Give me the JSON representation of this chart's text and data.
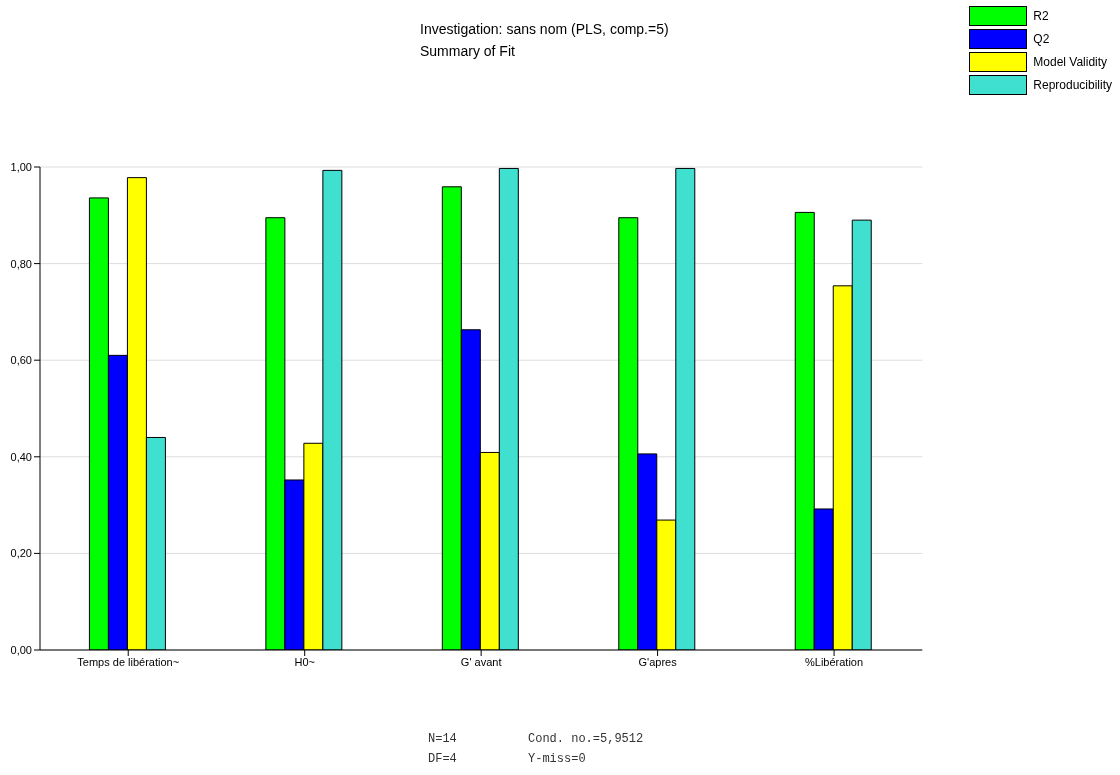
{
  "chart_data": {
    "type": "bar",
    "title": "Investigation: sans nom (PLS, comp.=5)",
    "subtitle": "Summary of Fit",
    "categories": [
      "Temps de libération~",
      "H0~",
      "G' avant",
      "G'apres",
      "%Libération"
    ],
    "series": [
      {
        "name": "R2",
        "color": "#00ff00",
        "values": [
          0.936,
          0.895,
          0.959,
          0.895,
          0.906
        ]
      },
      {
        "name": "Q2",
        "color": "#0000ff",
        "values": [
          0.61,
          0.352,
          0.663,
          0.406,
          0.292
        ]
      },
      {
        "name": "Model Validity",
        "color": "#ffff00",
        "values": [
          0.978,
          0.428,
          0.409,
          0.269,
          0.754
        ]
      },
      {
        "name": "Reproducibility",
        "color": "#40e0d0",
        "values": [
          0.44,
          0.993,
          0.997,
          0.997,
          0.89
        ]
      }
    ],
    "ylim": [
      0,
      1
    ],
    "yticks": [
      {
        "value": 0,
        "label": "0,00"
      },
      {
        "value": 0.2,
        "label": "0,20"
      },
      {
        "value": 0.4,
        "label": "0,40"
      },
      {
        "value": 0.6,
        "label": "0,60"
      },
      {
        "value": 0.8,
        "label": "0,80"
      },
      {
        "value": 1,
        "label": "1,00"
      }
    ],
    "grid": "y",
    "legend": "top right",
    "annotations": [
      "N=14",
      "Cond. no.=5,9512",
      "DF=4",
      "Y-miss=0"
    ]
  }
}
